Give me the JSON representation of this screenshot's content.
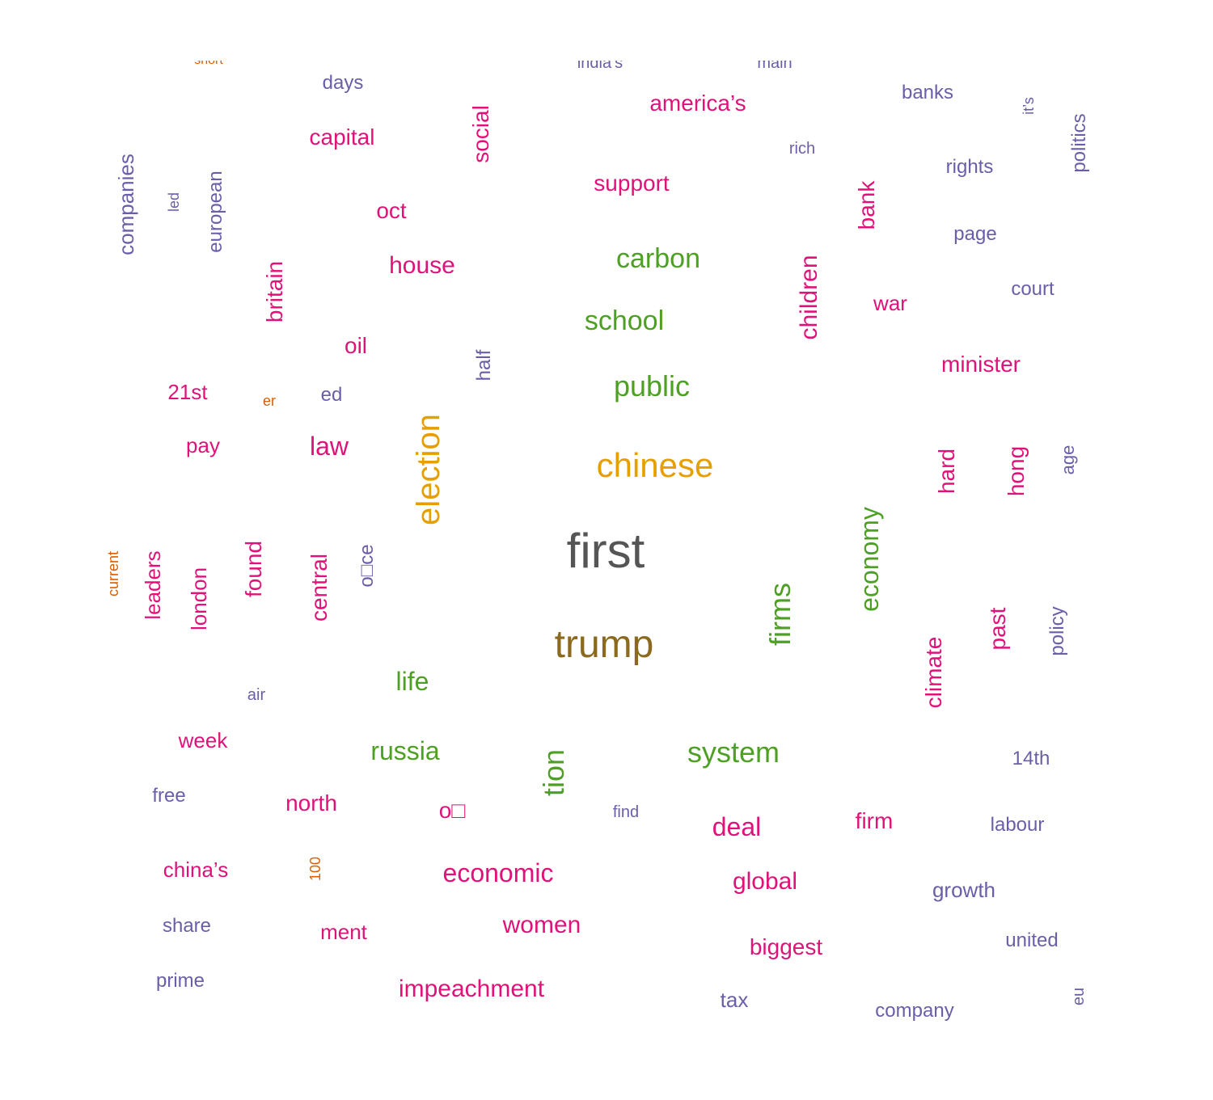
{
  "colors": {
    "c_first": "#555555",
    "c_trump": "#8b6a1f",
    "c_orange": "#e69f00",
    "c_green": "#4ea024",
    "c_magenta": "#e0127a",
    "c_purple": "#6b5ea8",
    "c_darkorange": "#d95f02"
  },
  "words": [
    {
      "text": "short",
      "color": "c_darkorange",
      "orient": "h"
    },
    {
      "text": "india’s",
      "color": "c_purple",
      "orient": "h"
    },
    {
      "text": "main",
      "color": "c_purple",
      "orient": "h"
    },
    {
      "text": "days",
      "color": "c_purple",
      "orient": "h"
    },
    {
      "text": "america’s",
      "color": "c_magenta",
      "orient": "h"
    },
    {
      "text": "banks",
      "color": "c_purple",
      "orient": "h"
    },
    {
      "text": "it’s",
      "color": "c_purple",
      "orient": "v"
    },
    {
      "text": "politics",
      "color": "c_purple",
      "orient": "v"
    },
    {
      "text": "capital",
      "color": "c_magenta",
      "orient": "h"
    },
    {
      "text": "social",
      "color": "c_magenta",
      "orient": "v"
    },
    {
      "text": "rich",
      "color": "c_purple",
      "orient": "h"
    },
    {
      "text": "companies",
      "color": "c_purple",
      "orient": "v"
    },
    {
      "text": "led",
      "color": "c_purple",
      "orient": "v"
    },
    {
      "text": "european",
      "color": "c_purple",
      "orient": "v"
    },
    {
      "text": "rights",
      "color": "c_purple",
      "orient": "h"
    },
    {
      "text": "support",
      "color": "c_magenta",
      "orient": "h"
    },
    {
      "text": "bank",
      "color": "c_magenta",
      "orient": "v"
    },
    {
      "text": "oct",
      "color": "c_magenta",
      "orient": "h"
    },
    {
      "text": "page",
      "color": "c_purple",
      "orient": "h"
    },
    {
      "text": "carbon",
      "color": "c_green",
      "orient": "h"
    },
    {
      "text": "house",
      "color": "c_magenta",
      "orient": "h"
    },
    {
      "text": "britain",
      "color": "c_magenta",
      "orient": "v"
    },
    {
      "text": "children",
      "color": "c_magenta",
      "orient": "v"
    },
    {
      "text": "court",
      "color": "c_purple",
      "orient": "h"
    },
    {
      "text": "war",
      "color": "c_magenta",
      "orient": "h"
    },
    {
      "text": "school",
      "color": "c_green",
      "orient": "h"
    },
    {
      "text": "oil",
      "color": "c_magenta",
      "orient": "h"
    },
    {
      "text": "half",
      "color": "c_purple",
      "orient": "v"
    },
    {
      "text": "minister",
      "color": "c_magenta",
      "orient": "h"
    },
    {
      "text": "public",
      "color": "c_green",
      "orient": "h"
    },
    {
      "text": "21st",
      "color": "c_magenta",
      "orient": "h"
    },
    {
      "text": "er",
      "color": "c_darkorange",
      "orient": "h"
    },
    {
      "text": "ed",
      "color": "c_purple",
      "orient": "h"
    },
    {
      "text": "election",
      "color": "c_orange",
      "orient": "v"
    },
    {
      "text": "pay",
      "color": "c_magenta",
      "orient": "h"
    },
    {
      "text": "law",
      "color": "c_magenta",
      "orient": "h"
    },
    {
      "text": "chinese",
      "color": "c_orange",
      "orient": "h"
    },
    {
      "text": "hard",
      "color": "c_magenta",
      "orient": "v"
    },
    {
      "text": "hong",
      "color": "c_magenta",
      "orient": "v"
    },
    {
      "text": "age",
      "color": "c_purple",
      "orient": "v"
    },
    {
      "text": "economy",
      "color": "c_green",
      "orient": "v"
    },
    {
      "text": "first",
      "color": "c_first",
      "orient": "h"
    },
    {
      "text": "current",
      "color": "c_darkorange",
      "orient": "v"
    },
    {
      "text": "leaders",
      "color": "c_magenta",
      "orient": "v"
    },
    {
      "text": "london",
      "color": "c_magenta",
      "orient": "v"
    },
    {
      "text": "found",
      "color": "c_magenta",
      "orient": "v"
    },
    {
      "text": "central",
      "color": "c_magenta",
      "orient": "v"
    },
    {
      "text": "o□ce",
      "color": "c_purple",
      "orient": "v"
    },
    {
      "text": "firms",
      "color": "c_green",
      "orient": "v"
    },
    {
      "text": "trump",
      "color": "c_trump",
      "orient": "h"
    },
    {
      "text": "past",
      "color": "c_magenta",
      "orient": "v"
    },
    {
      "text": "policy",
      "color": "c_purple",
      "orient": "v"
    },
    {
      "text": "climate",
      "color": "c_magenta",
      "orient": "v"
    },
    {
      "text": "life",
      "color": "c_green",
      "orient": "h"
    },
    {
      "text": "air",
      "color": "c_purple",
      "orient": "h"
    },
    {
      "text": "week",
      "color": "c_magenta",
      "orient": "h"
    },
    {
      "text": "russia",
      "color": "c_green",
      "orient": "h"
    },
    {
      "text": "tion",
      "color": "c_green",
      "orient": "v"
    },
    {
      "text": "system",
      "color": "c_green",
      "orient": "h"
    },
    {
      "text": "14th",
      "color": "c_purple",
      "orient": "h"
    },
    {
      "text": "free",
      "color": "c_purple",
      "orient": "h"
    },
    {
      "text": "north",
      "color": "c_magenta",
      "orient": "h"
    },
    {
      "text": "o□",
      "color": "c_magenta",
      "orient": "h"
    },
    {
      "text": "find",
      "color": "c_purple",
      "orient": "h"
    },
    {
      "text": "deal",
      "color": "c_magenta",
      "orient": "h"
    },
    {
      "text": "firm",
      "color": "c_magenta",
      "orient": "h"
    },
    {
      "text": "labour",
      "color": "c_purple",
      "orient": "h"
    },
    {
      "text": "china’s",
      "color": "c_magenta",
      "orient": "h"
    },
    {
      "text": "100",
      "color": "c_darkorange",
      "orient": "v"
    },
    {
      "text": "economic",
      "color": "c_magenta",
      "orient": "h"
    },
    {
      "text": "global",
      "color": "c_magenta",
      "orient": "h"
    },
    {
      "text": "growth",
      "color": "c_purple",
      "orient": "h"
    },
    {
      "text": "share",
      "color": "c_purple",
      "orient": "h"
    },
    {
      "text": "ment",
      "color": "c_magenta",
      "orient": "h"
    },
    {
      "text": "women",
      "color": "c_magenta",
      "orient": "h"
    },
    {
      "text": "united",
      "color": "c_purple",
      "orient": "h"
    },
    {
      "text": "biggest",
      "color": "c_magenta",
      "orient": "h"
    },
    {
      "text": "prime",
      "color": "c_purple",
      "orient": "h"
    },
    {
      "text": "impeachment",
      "color": "c_magenta",
      "orient": "h"
    },
    {
      "text": "eu",
      "color": "c_purple",
      "orient": "v"
    },
    {
      "text": "tax",
      "color": "c_purple",
      "orient": "h"
    },
    {
      "text": "company",
      "color": "c_purple",
      "orient": "h"
    }
  ]
}
